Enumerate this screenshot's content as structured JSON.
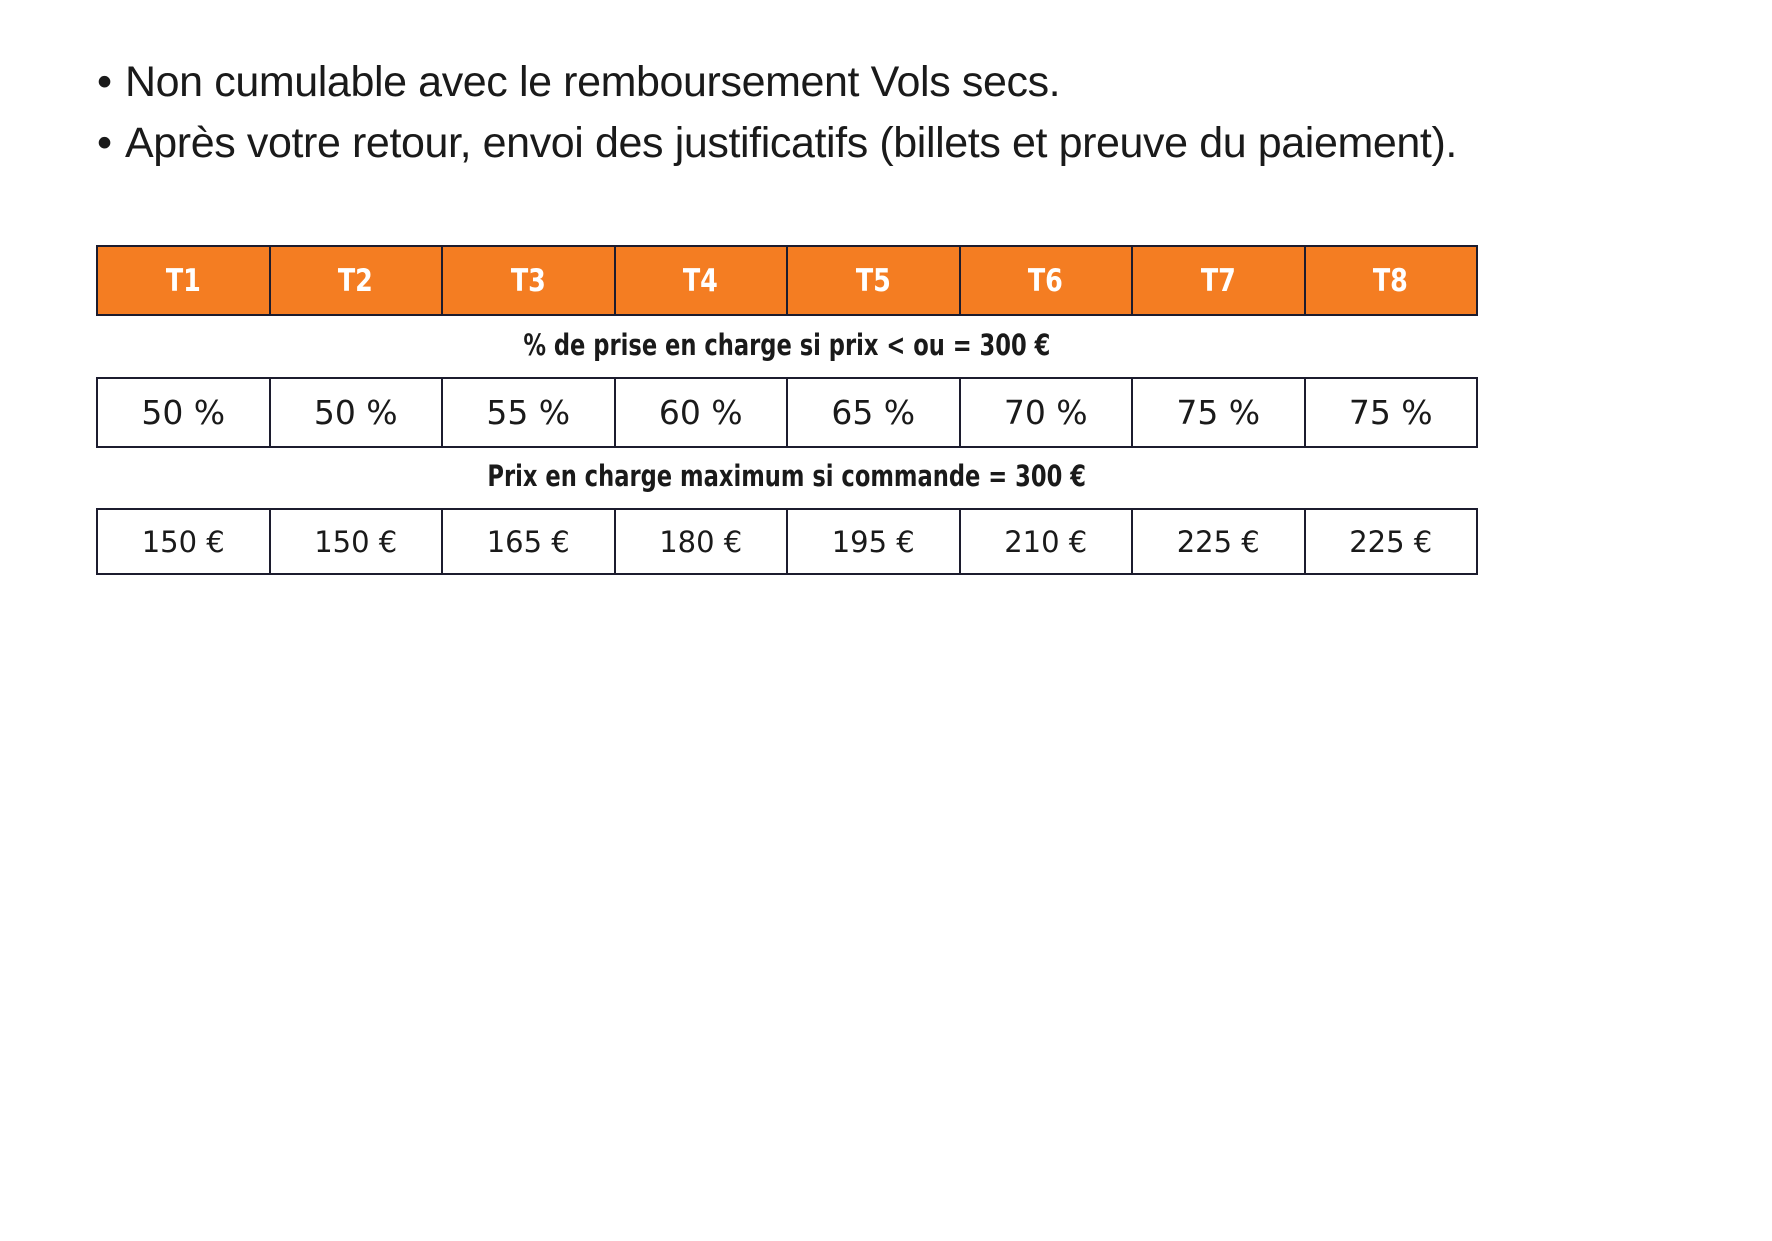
{
  "bullets": [
    "Non cumulable avec le remboursement Vols secs.",
    "Après votre retour, envoi des justificatifs (billets et preuve du paiement)."
  ],
  "table": {
    "headers": [
      "T1",
      "T2",
      "T3",
      "T4",
      "T5",
      "T6",
      "T7",
      "T8"
    ],
    "caption_percent": "% de prise en charge si prix < ou = 300 €",
    "percent_values": [
      "50 %",
      "50 %",
      "55 %",
      "60 %",
      "65 %",
      "70 %",
      "75 %",
      "75 %"
    ],
    "caption_max": "Prix  en charge maximum si commande = 300 €",
    "max_values": [
      "150 €",
      "150 €",
      "165 €",
      "180 €",
      "195 €",
      "210 €",
      "225 €",
      "225 €"
    ]
  },
  "colors": {
    "header_background": "#f47d22",
    "header_text": "#ffffff",
    "border": "#1c1c2e"
  }
}
